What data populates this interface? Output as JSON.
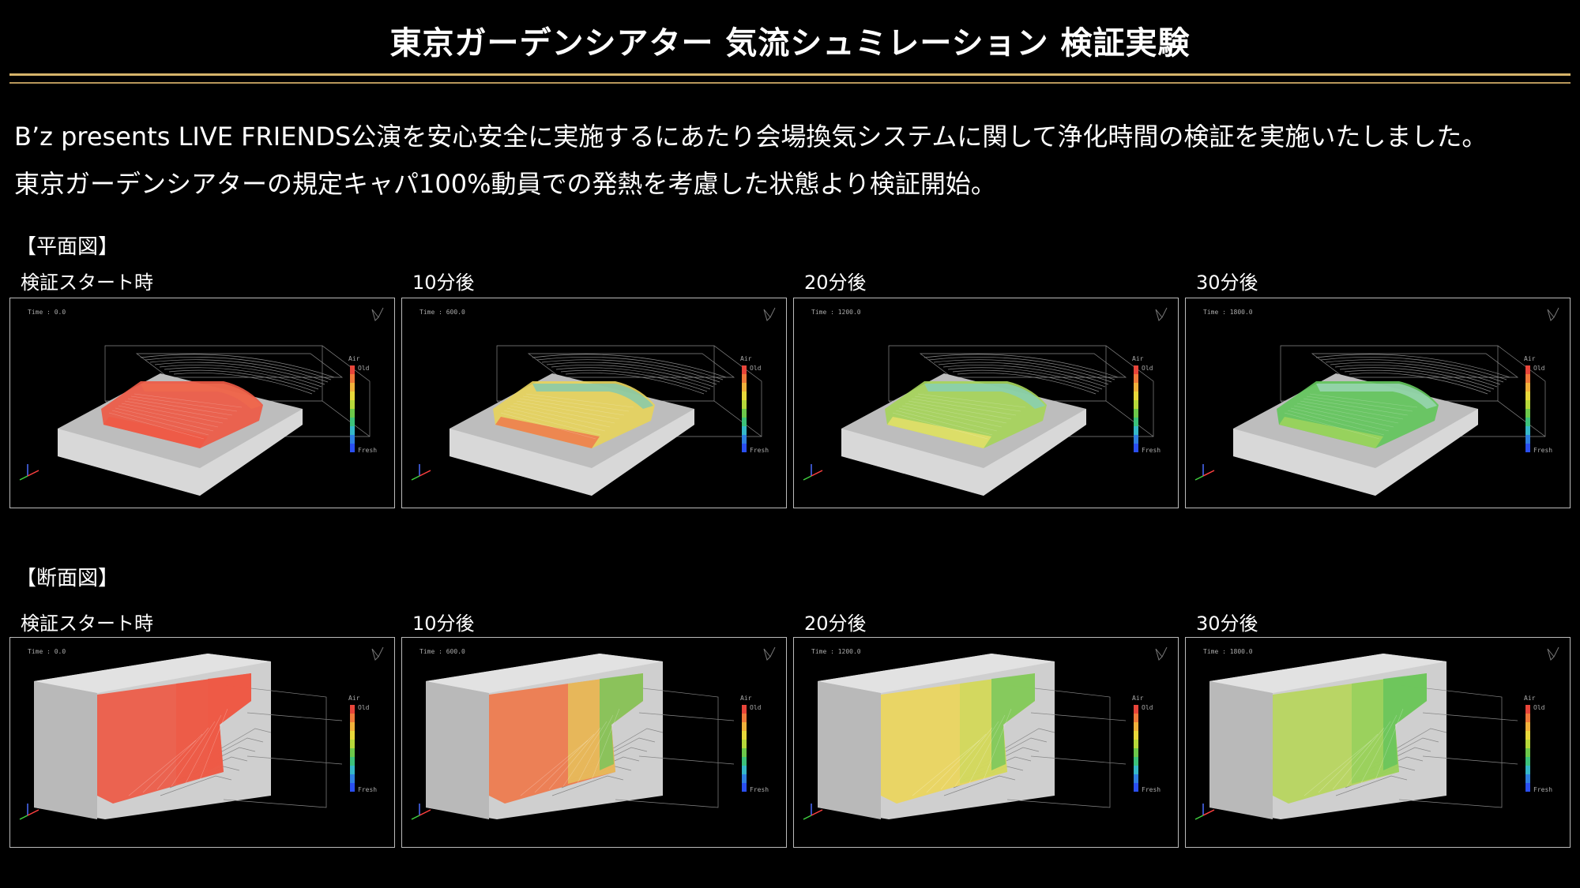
{
  "title": "東京ガーデンシアター 気流シュミレーション 検証実験",
  "description": [
    "B’z presents LIVE FRIENDS公演を安心安全に実施するにあたり会場換気システムに関して浄化時間の検証を実施いたしました。",
    "東京ガーデンシアターの規定キャパ100%動員での発熱を考慮した状態より検証開始。"
  ],
  "colors": {
    "background": "#000000",
    "rule": "#d6b46a",
    "text": "#ffffff"
  },
  "sections": [
    {
      "heading": "【平面図】",
      "view": "plan",
      "frames": [
        {
          "label": "検証スタート時",
          "time": "Time : 0.0",
          "fill": "#ee5a45",
          "fill2": "#ef6a4d",
          "fill3": "#ee5a45"
        },
        {
          "label": "10分後",
          "time": "Time : 600.0",
          "fill": "#e6d25c",
          "fill2": "#7fc9b0",
          "fill3": "#ee7a4c"
        },
        {
          "label": "20分後",
          "time": "Time : 1200.0",
          "fill": "#a6d45a",
          "fill2": "#86cfb9",
          "fill3": "#e5e06a"
        },
        {
          "label": "30分後",
          "time": "Time : 1800.0",
          "fill": "#63c65c",
          "fill2": "#9cd6b8",
          "fill3": "#9fd45c"
        }
      ]
    },
    {
      "heading": "【断面図】",
      "view": "section",
      "frames": [
        {
          "label": "検証スタート時",
          "time": "Time : 0.0",
          "fill": "#ee5a45",
          "fill2": "#ee5a45",
          "fill3": "#ee5a45"
        },
        {
          "label": "10分後",
          "time": "Time : 600.0",
          "fill": "#ef7a4c",
          "fill2": "#e6cf5c",
          "fill3": "#6cc65c"
        },
        {
          "label": "20分後",
          "time": "Time : 1200.0",
          "fill": "#ebd65c",
          "fill2": "#c9d85c",
          "fill3": "#6cc65c"
        },
        {
          "label": "30分後",
          "time": "Time : 1800.0",
          "fill": "#b7d65c",
          "fill2": "#8fcf5a",
          "fill3": "#5fc25c"
        }
      ]
    }
  ],
  "legend": {
    "title": "Air",
    "top": "Old",
    "bottom": "Fresh"
  }
}
